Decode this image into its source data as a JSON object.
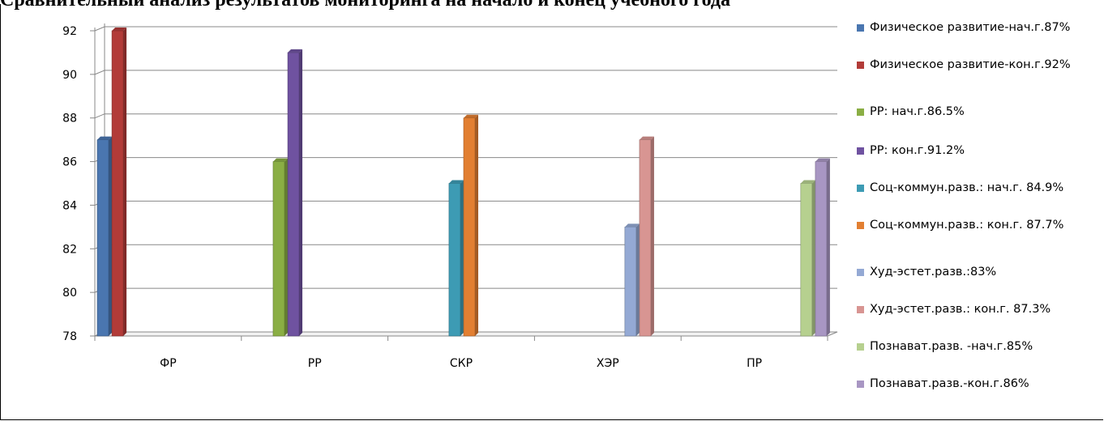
{
  "header": {
    "title": "Сравнительный анализ результатов мониторинга на начало и конец учебного года"
  },
  "chart_data": {
    "type": "bar",
    "categories": [
      "ФР",
      "РР",
      "СКР",
      "ХЭР",
      "ПР"
    ],
    "ylim": [
      78,
      92
    ],
    "yticks": [
      "78",
      "80",
      "82",
      "84",
      "86",
      "88",
      "90",
      "92"
    ],
    "grid": true,
    "legend_position": "right",
    "series": [
      {
        "name": "Физическое развитие-нач.г.87%",
        "category": "ФР",
        "slot": 0,
        "value": 87,
        "color": "#4a76b0"
      },
      {
        "name": "Физическое развитие-кон.г.92%",
        "category": "ФР",
        "slot": 1,
        "value": 92,
        "color": "#b23b38"
      },
      {
        "name": "РР: нач.г.86.5%",
        "category": "РР",
        "slot": 2,
        "value": 86,
        "color": "#8aae44"
      },
      {
        "name": "РР: кон.г.91.2%",
        "category": "РР",
        "slot": 3,
        "value": 91,
        "color": "#6f52a0"
      },
      {
        "name": "Соц-коммун.разв.: нач.г. 84.9%",
        "category": "СКР",
        "slot": 4,
        "value": 85,
        "color": "#3d9bb4"
      },
      {
        "name": "Соц-коммун.разв.: кон.г. 87.7%",
        "category": "СКР",
        "slot": 5,
        "value": 88,
        "color": "#e27f32"
      },
      {
        "name": "Худ-эстет.разв.:83%",
        "category": "ХЭР",
        "slot": 6,
        "value": 83,
        "color": "#94a9d4"
      },
      {
        "name": "Худ-эстет.разв.: кон.г. 87.3%",
        "category": "ХЭР",
        "slot": 7,
        "value": 87,
        "color": "#d89592"
      },
      {
        "name": "Познават.разв. -нач.г.85%",
        "category": "ПР",
        "slot": 8,
        "value": 85,
        "color": "#b6d08f"
      },
      {
        "name": "Познават.разв.-кон.г.86%",
        "category": "ПР",
        "slot": 9,
        "value": 86,
        "color": "#a896c3"
      }
    ]
  }
}
